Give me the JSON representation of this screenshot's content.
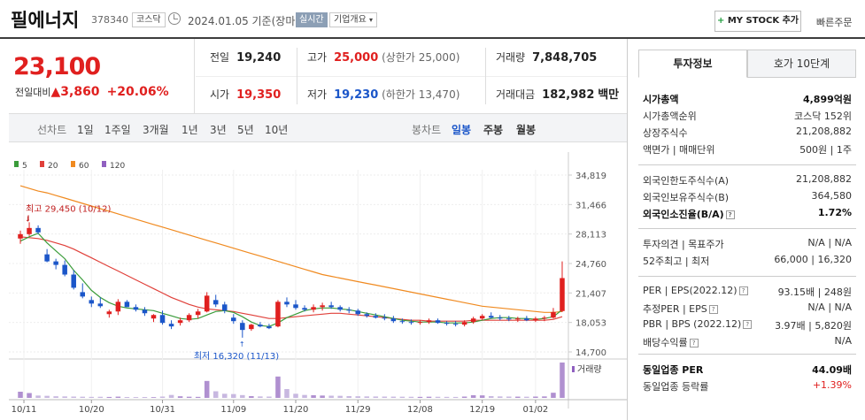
{
  "header": {
    "name": "필에너지",
    "code": "378340",
    "market_badge": "코스닥",
    "date_text": "2024.01.05 기준(장마감)",
    "realtime_badge": "실시간",
    "company_overview": "기업개요",
    "my_stock_plus": "+",
    "my_stock_label": "MY STOCK 추가",
    "quick_order": "빠른주문"
  },
  "price": {
    "current": "23,100",
    "change_label": "전일대비",
    "change_arrow": "▲",
    "change_value": "3,860",
    "change_pct": "+20.06%"
  },
  "quote": {
    "prev_label": "전일",
    "prev_value": "19,240",
    "high_label": "고가",
    "high_value": "25,000",
    "upper_limit": "(상한가 25,000)",
    "volume_label": "거래량",
    "volume_value": "7,848,705",
    "open_label": "시가",
    "open_value": "19,350",
    "low_label": "저가",
    "low_value": "19,230",
    "lower_limit": "(하한가 13,470)",
    "amount_label": "거래대금",
    "amount_value": "182,982",
    "amount_unit": "백만"
  },
  "period_bar": {
    "line_label": "선차트",
    "ranges": [
      "1일",
      "1주일",
      "3개월",
      "1년",
      "3년",
      "5년",
      "10년"
    ],
    "candle_label": "봉차트",
    "candle_options": [
      "일봉",
      "주봉",
      "월봉"
    ],
    "active_candle": "일봉"
  },
  "chart_data": {
    "type": "candlestick",
    "legend": [
      {
        "name": "5",
        "color": "#3a9c3a"
      },
      {
        "name": "20",
        "color": "#e0403a"
      },
      {
        "name": "60",
        "color": "#f08a20"
      },
      {
        "name": "120",
        "color": "#9060c0"
      }
    ],
    "y_ticks": [
      "34,819",
      "31,466",
      "28,113",
      "24,760",
      "21,407",
      "18,053",
      "14,700"
    ],
    "ylim": [
      14700,
      34819
    ],
    "x_ticks": [
      "10/11",
      "10/20",
      "10/31",
      "11/09",
      "11/20",
      "11/29",
      "12/08",
      "12/19",
      "01/02"
    ],
    "high_annotation": "최고 29,450 (10/12)",
    "low_annotation": "최저 16,320 (11/13)",
    "volume_label": "거래량",
    "up_color": "#e0201f",
    "down_color": "#1b56c9",
    "candles": [
      [
        27600,
        28500,
        27000,
        28100
      ],
      [
        28100,
        29450,
        27900,
        28800
      ],
      [
        28800,
        29100,
        28100,
        28300
      ],
      [
        25800,
        26400,
        24900,
        25000
      ],
      [
        25000,
        25300,
        24100,
        24600
      ],
      [
        24600,
        25100,
        23300,
        23500
      ],
      [
        23500,
        24000,
        21800,
        22000
      ],
      [
        21500,
        22500,
        20800,
        21000
      ],
      [
        20600,
        21000,
        19800,
        20200
      ],
      [
        20200,
        20900,
        19700,
        19900
      ],
      [
        19000,
        19500,
        18600,
        19300
      ],
      [
        19300,
        20700,
        18900,
        20400
      ],
      [
        20400,
        20600,
        19800,
        19800
      ],
      [
        19800,
        20100,
        19300,
        19500
      ],
      [
        19500,
        19800,
        18800,
        19100
      ],
      [
        18500,
        19000,
        18100,
        18900
      ],
      [
        18900,
        19400,
        17800,
        18000
      ],
      [
        17900,
        18300,
        17300,
        17600
      ],
      [
        18000,
        18600,
        17700,
        18300
      ],
      [
        18300,
        19100,
        18100,
        18900
      ],
      [
        18900,
        19600,
        18500,
        19300
      ],
      [
        19300,
        21500,
        19200,
        21100
      ],
      [
        20600,
        21200,
        19800,
        20100
      ],
      [
        20100,
        20400,
        19100,
        19400
      ],
      [
        18600,
        19000,
        17900,
        18200
      ],
      [
        18000,
        18300,
        16320,
        17200
      ],
      [
        17300,
        17900,
        17100,
        17800
      ],
      [
        17800,
        18100,
        17500,
        17600
      ],
      [
        17600,
        17900,
        17300,
        17400
      ],
      [
        17600,
        20600,
        17500,
        20400
      ],
      [
        20400,
        20900,
        19800,
        20100
      ],
      [
        20100,
        20600,
        19500,
        19700
      ],
      [
        19700,
        20000,
        19300,
        19500
      ],
      [
        19500,
        20100,
        19200,
        19800
      ],
      [
        19800,
        20300,
        19400,
        20000
      ],
      [
        20000,
        20400,
        19600,
        19800
      ],
      [
        19800,
        20000,
        19300,
        19500
      ],
      [
        19500,
        19800,
        19100,
        19400
      ],
      [
        19400,
        19600,
        18800,
        19000
      ],
      [
        19000,
        19200,
        18600,
        18800
      ],
      [
        18800,
        19100,
        18500,
        18600
      ],
      [
        18600,
        19000,
        18300,
        18500
      ],
      [
        18500,
        18800,
        18000,
        18200
      ],
      [
        18200,
        18500,
        17900,
        18100
      ],
      [
        18100,
        18400,
        17800,
        18000
      ],
      [
        18000,
        18300,
        17800,
        18100
      ],
      [
        18100,
        18500,
        17900,
        18300
      ],
      [
        18300,
        18500,
        17900,
        18000
      ],
      [
        18000,
        18200,
        17700,
        17900
      ],
      [
        17900,
        18200,
        17600,
        17800
      ],
      [
        17800,
        18300,
        17600,
        18100
      ],
      [
        18100,
        18700,
        17900,
        18500
      ],
      [
        18500,
        19000,
        18300,
        18800
      ],
      [
        18800,
        19200,
        18500,
        18600
      ],
      [
        18600,
        18900,
        18300,
        18500
      ],
      [
        18500,
        18800,
        18200,
        18400
      ],
      [
        18400,
        18700,
        18100,
        18500
      ],
      [
        18500,
        18800,
        18200,
        18300
      ],
      [
        18300,
        18700,
        18100,
        18500
      ],
      [
        18500,
        18800,
        18200,
        18600
      ],
      [
        18600,
        19700,
        18500,
        19240
      ],
      [
        19350,
        25000,
        19230,
        23100
      ]
    ],
    "volumes": [
      420,
      330,
      160,
      140,
      110,
      100,
      90,
      80,
      70,
      75,
      65,
      85,
      60,
      55,
      60,
      50,
      90,
      200,
      110,
      80,
      70,
      1150,
      450,
      280,
      260,
      190,
      120,
      100,
      90,
      1450,
      600,
      280,
      200,
      180,
      160,
      150,
      140,
      120,
      110,
      100,
      95,
      90,
      85,
      80,
      75,
      70,
      80,
      75,
      70,
      65,
      90,
      180,
      170,
      120,
      100,
      90,
      85,
      80,
      90,
      100,
      350,
      2400
    ],
    "ma5": [
      27300,
      27800,
      28200,
      27100,
      26200,
      25300,
      24000,
      22900,
      21700,
      20900,
      20300,
      19900,
      19700,
      19600,
      19500,
      19400,
      19100,
      18800,
      18500,
      18400,
      18500,
      18900,
      19300,
      19400,
      19200,
      18700,
      18100,
      17700,
      17600,
      18000,
      18600,
      19000,
      19400,
      19600,
      19700,
      19700,
      19600,
      19500,
      19300,
      19100,
      18900,
      18700,
      18500,
      18300,
      18200,
      18100,
      18100,
      18100,
      18000,
      18000,
      18000,
      18100,
      18300,
      18500,
      18600,
      18600,
      18500,
      18500,
      18400,
      18500,
      18700,
      19500
    ],
    "ma20": [
      27800,
      27700,
      27600,
      27400,
      27100,
      26800,
      26400,
      25900,
      25400,
      24900,
      24400,
      23900,
      23400,
      22900,
      22400,
      21900,
      21400,
      20900,
      20500,
      20100,
      19800,
      19600,
      19500,
      19400,
      19300,
      19100,
      18900,
      18700,
      18500,
      18500,
      18600,
      18700,
      18800,
      18900,
      19000,
      19100,
      19100,
      19000,
      18900,
      18800,
      18700,
      18600,
      18500,
      18400,
      18300,
      18300,
      18200,
      18200,
      18200,
      18200,
      18200,
      18300,
      18300,
      18300,
      18300,
      18300,
      18300,
      18300,
      18300,
      18300,
      18400,
      18700
    ],
    "ma60": [
      33600,
      33300,
      33000,
      32800,
      32500,
      32200,
      31900,
      31600,
      31300,
      31000,
      30700,
      30400,
      30100,
      29800,
      29500,
      29200,
      28900,
      28600,
      28300,
      28000,
      27700,
      27400,
      27100,
      26800,
      26500,
      26200,
      25900,
      25600,
      25300,
      25000,
      24700,
      24400,
      24100,
      23800,
      23500,
      23300,
      23100,
      22900,
      22700,
      22500,
      22300,
      22100,
      21900,
      21700,
      21500,
      21300,
      21100,
      20900,
      20700,
      20500,
      20300,
      20100,
      19900,
      19800,
      19700,
      19600,
      19500,
      19400,
      19300,
      19200,
      19200,
      19300
    ]
  },
  "panel": {
    "tab_invest": "투자정보",
    "tab_orderbook": "호가 10단계",
    "rows_a": [
      {
        "k": "시가총액",
        "v": "4,899억원",
        "bold": true
      },
      {
        "k": "시가총액순위",
        "v": "코스닥 152위"
      },
      {
        "k": "상장주식수",
        "v": "21,208,882"
      },
      {
        "k": "액면가 | 매매단위",
        "v": "500원 | 1주"
      }
    ],
    "rows_b": [
      {
        "k": "외국인한도주식수(A)",
        "v": "21,208,882"
      },
      {
        "k": "외국인보유주식수(B)",
        "v": "364,580"
      },
      {
        "k": "외국인소진율(B/A)",
        "v": "1.72%",
        "bold": true
      }
    ],
    "rows_c": [
      {
        "k": "투자의견 | 목표주가",
        "v": "N/A | N/A"
      },
      {
        "k": "52주최고 | 최저",
        "v": "66,000 | 16,320"
      }
    ],
    "rows_d": [
      {
        "k": "PER | EPS(2022.12)",
        "v": "93.15배 | 248원"
      },
      {
        "k": "추정PER | EPS",
        "v": "N/A | N/A"
      },
      {
        "k": "PBR | BPS (2022.12)",
        "v": "3.97배 | 5,820원"
      },
      {
        "k": "배당수익률",
        "v": "N/A"
      }
    ],
    "rows_e": [
      {
        "k": "동일업종 PER",
        "v": "44.09배",
        "bold": true
      },
      {
        "k": "동일업종 등락률",
        "v": "+1.39%",
        "red": true
      }
    ]
  }
}
